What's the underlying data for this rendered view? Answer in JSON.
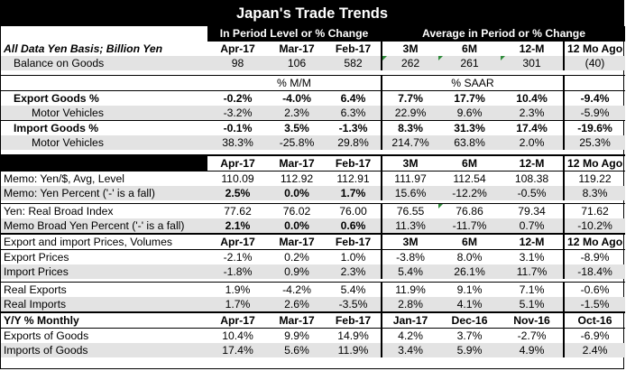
{
  "title": "Japan's Trade Trends",
  "subheaders": {
    "left": "In Period Level or % Change",
    "right": "Average in Period or % Change"
  },
  "header_row": {
    "label": "All Data Yen Basis; Billion Yen",
    "cols": [
      "Apr-17",
      "Mar-17",
      "Feb-17",
      "3M",
      "6M",
      "12-M",
      "12 Mo Ago"
    ]
  },
  "balance": {
    "label": "Balance on Goods",
    "vals": [
      "98",
      "106",
      "582",
      "262",
      "261",
      "301",
      "(40)"
    ]
  },
  "unit_row": {
    "mm": "% M/M",
    "saar": "% SAAR"
  },
  "export_goods": {
    "label": "Export Goods %",
    "vals": [
      "-0.2%",
      "-4.0%",
      "6.4%",
      "7.7%",
      "17.7%",
      "10.4%",
      "-9.4%"
    ]
  },
  "export_mv": {
    "label": "Motor Vehicles",
    "vals": [
      "-3.2%",
      "2.3%",
      "6.3%",
      "22.9%",
      "9.6%",
      "2.3%",
      "-5.9%"
    ]
  },
  "import_goods": {
    "label": "Import Goods %",
    "vals": [
      "-0.1%",
      "3.5%",
      "-1.3%",
      "8.3%",
      "31.3%",
      "17.4%",
      "-19.6%"
    ]
  },
  "import_mv": {
    "label": "Motor Vehicles",
    "vals": [
      "38.3%",
      "-25.8%",
      "29.8%",
      "214.7%",
      "63.8%",
      "2.0%",
      "25.3%"
    ]
  },
  "memo_header": {
    "cols": [
      "Apr-17",
      "Mar-17",
      "Feb-17",
      "3M",
      "6M",
      "12-M",
      "12 Mo Ago"
    ]
  },
  "memo_yen": {
    "label": "Memo: Yen/$, Avg, Level",
    "vals": [
      "110.09",
      "112.92",
      "112.91",
      "111.97",
      "112.54",
      "108.38",
      "119.22"
    ]
  },
  "memo_yen_pct": {
    "label": "Memo: Yen Percent ('-' is a fall)",
    "vals": [
      "2.5%",
      "0.0%",
      "1.7%",
      "15.6%",
      "-12.2%",
      "-0.5%",
      "8.3%"
    ]
  },
  "real_broad": {
    "label": "Yen: Real Broad Index",
    "vals": [
      "77.62",
      "76.02",
      "76.00",
      "76.55",
      "76.86",
      "79.34",
      "71.62"
    ]
  },
  "memo_broad": {
    "label": "Memo Broad Yen Percent ('-' is a fall)",
    "vals": [
      "2.1%",
      "0.0%",
      "0.6%",
      "11.3%",
      "-11.7%",
      "0.7%",
      "-10.2%"
    ]
  },
  "prices_header": {
    "label": "Export and import Prices, Volumes",
    "cols": [
      "Apr-17",
      "Mar-17",
      "Feb-17",
      "3M",
      "6M",
      "12-M",
      "12 Mo Ago"
    ]
  },
  "export_prices": {
    "label": "Export Prices",
    "vals": [
      "-2.1%",
      "0.2%",
      "1.0%",
      "-3.8%",
      "8.0%",
      "3.1%",
      "-8.9%"
    ]
  },
  "import_prices": {
    "label": "Import Prices",
    "vals": [
      "-1.8%",
      "0.9%",
      "2.3%",
      "5.4%",
      "26.1%",
      "11.7%",
      "-18.4%"
    ]
  },
  "real_exports": {
    "label": "Real Exports",
    "vals": [
      "1.9%",
      "-4.2%",
      "5.4%",
      "11.9%",
      "9.1%",
      "7.1%",
      "-0.6%"
    ]
  },
  "real_imports": {
    "label": "Real Imports",
    "vals": [
      "1.7%",
      "2.6%",
      "-3.5%",
      "2.8%",
      "4.1%",
      "5.1%",
      "-1.5%"
    ]
  },
  "yy_header": {
    "label": "Y/Y % Monthly",
    "cols": [
      "Apr-17",
      "Mar-17",
      "Feb-17",
      "Jan-17",
      "Dec-16",
      "Nov-16",
      "Oct-16"
    ]
  },
  "exports_goods": {
    "label": "Exports of Goods",
    "vals": [
      "10.4%",
      "9.9%",
      "14.9%",
      "4.2%",
      "3.7%",
      "-2.7%",
      "-6.9%"
    ]
  },
  "imports_goods": {
    "label": "Imports of Goods",
    "vals": [
      "17.4%",
      "5.6%",
      "11.9%",
      "3.4%",
      "5.9%",
      "4.9%",
      "2.4%"
    ]
  }
}
